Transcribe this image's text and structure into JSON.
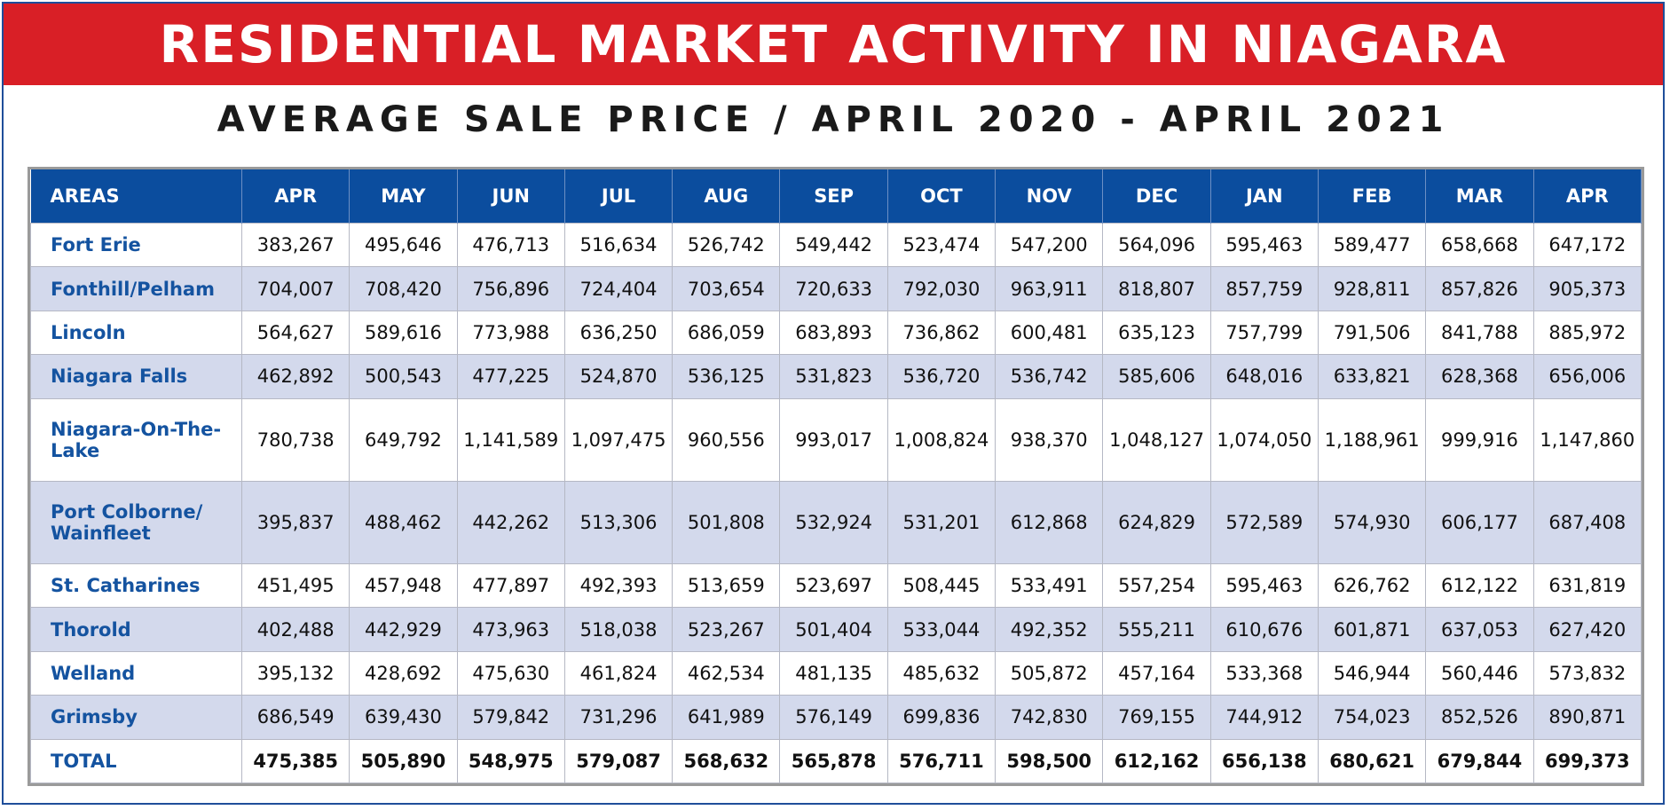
{
  "title": "RESIDENTIAL MARKET ACTIVITY IN NIAGARA",
  "subtitle": "AVERAGE SALE PRICE / APRIL 2020 - APRIL 2021",
  "colors": {
    "banner": "#d91f26",
    "header": "#0b4d9e",
    "alt_row": "#d3d9ec",
    "area_text": "#1453a0"
  },
  "chart_data": {
    "type": "table",
    "columns": [
      "AREAS",
      "APR",
      "MAY",
      "JUN",
      "JUL",
      "AUG",
      "SEP",
      "OCT",
      "NOV",
      "DEC",
      "JAN",
      "FEB",
      "MAR",
      "APR"
    ],
    "rows": [
      {
        "area": "Fort Erie",
        "values": [
          "383,267",
          "495,646",
          "476,713",
          "516,634",
          "526,742",
          "549,442",
          "523,474",
          "547,200",
          "564,096",
          "595,463",
          "589,477",
          "658,668",
          "647,172"
        ]
      },
      {
        "area": "Fonthill/Pelham",
        "values": [
          "704,007",
          "708,420",
          "756,896",
          "724,404",
          "703,654",
          "720,633",
          "792,030",
          "963,911",
          "818,807",
          "857,759",
          "928,811",
          "857,826",
          "905,373"
        ]
      },
      {
        "area": "Lincoln",
        "values": [
          "564,627",
          "589,616",
          "773,988",
          "636,250",
          "686,059",
          "683,893",
          "736,862",
          "600,481",
          "635,123",
          "757,799",
          "791,506",
          "841,788",
          "885,972"
        ]
      },
      {
        "area": "Niagara Falls",
        "values": [
          "462,892",
          "500,543",
          "477,225",
          "524,870",
          "536,125",
          "531,823",
          "536,720",
          "536,742",
          "585,606",
          "648,016",
          "633,821",
          "628,368",
          "656,006"
        ]
      },
      {
        "area": "Niagara-On-The-Lake",
        "values": [
          "780,738",
          "649,792",
          "1,141,589",
          "1,097,475",
          "960,556",
          "993,017",
          "1,008,824",
          "938,370",
          "1,048,127",
          "1,074,050",
          "1,188,961",
          "999,916",
          "1,147,860"
        ]
      },
      {
        "area": "Port Colborne/ Wainfleet",
        "values": [
          "395,837",
          "488,462",
          "442,262",
          "513,306",
          "501,808",
          "532,924",
          "531,201",
          "612,868",
          "624,829",
          "572,589",
          "574,930",
          "606,177",
          "687,408"
        ]
      },
      {
        "area": "St. Catharines",
        "values": [
          "451,495",
          "457,948",
          "477,897",
          "492,393",
          "513,659",
          "523,697",
          "508,445",
          "533,491",
          "557,254",
          "595,463",
          "626,762",
          "612,122",
          "631,819"
        ]
      },
      {
        "area": "Thorold",
        "values": [
          "402,488",
          "442,929",
          "473,963",
          "518,038",
          "523,267",
          "501,404",
          "533,044",
          "492,352",
          "555,211",
          "610,676",
          "601,871",
          "637,053",
          "627,420"
        ]
      },
      {
        "area": "Welland",
        "values": [
          "395,132",
          "428,692",
          "475,630",
          "461,824",
          "462,534",
          "481,135",
          "485,632",
          "505,872",
          "457,164",
          "533,368",
          "546,944",
          "560,446",
          "573,832"
        ]
      },
      {
        "area": "Grimsby",
        "values": [
          "686,549",
          "639,430",
          "579,842",
          "731,296",
          "641,989",
          "576,149",
          "699,836",
          "742,830",
          "769,155",
          "744,912",
          "754,023",
          "852,526",
          "890,871"
        ]
      }
    ],
    "total": {
      "area": "TOTAL",
      "values": [
        "475,385",
        "505,890",
        "548,975",
        "579,087",
        "568,632",
        "565,878",
        "576,711",
        "598,500",
        "612,162",
        "656,138",
        "680,621",
        "679,844",
        "699,373"
      ]
    }
  }
}
